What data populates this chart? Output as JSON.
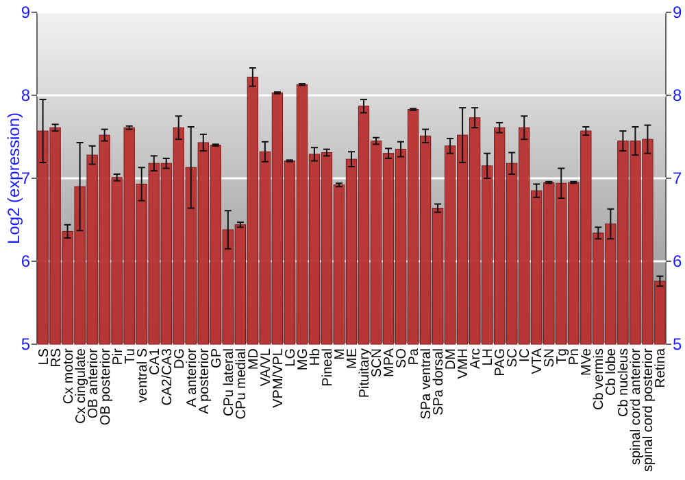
{
  "chart_data": {
    "type": "bar",
    "ylabel": "Log2 (expression)",
    "categories": [
      "LS",
      "RS",
      "Cx motor",
      "Cx cingulate",
      "OB anterior",
      "OB posterior",
      "Pir",
      "Tu",
      "ventral S",
      "CA1",
      "CA2/CA3",
      "DG",
      "A anterior",
      "A posterior",
      "GP",
      "CPu lateral",
      "CPu medial",
      "MD",
      "VA/VL",
      "VPM/VPL",
      "LG",
      "MG",
      "Hb",
      "Pineal",
      "M",
      "ME",
      "Pituitary",
      "SCN",
      "MPA",
      "SO",
      "Pa",
      "SPa ventral",
      "SPa dorsal",
      "DM",
      "VMH",
      "Arc",
      "LH",
      "PAG",
      "SC",
      "IC",
      "VTA",
      "SN",
      "Tg",
      "Pn",
      "MVe",
      "Cb vermis",
      "Cb lobe",
      "Cb nucleus",
      "spinal cord anterior",
      "spinal cord posterior",
      "Retina"
    ],
    "values": [
      7.57,
      7.61,
      6.36,
      6.9,
      7.28,
      7.52,
      7.01,
      7.61,
      6.93,
      7.18,
      7.18,
      7.61,
      7.13,
      7.43,
      7.4,
      6.38,
      6.44,
      8.22,
      7.32,
      8.03,
      7.21,
      8.13,
      7.29,
      7.31,
      6.92,
      7.23,
      7.87,
      7.45,
      7.3,
      7.35,
      7.83,
      7.51,
      6.64,
      7.39,
      7.52,
      7.73,
      7.15,
      7.61,
      7.18,
      7.61,
      6.85,
      6.95,
      6.94,
      6.95,
      7.57,
      6.34,
      6.45,
      7.45,
      7.45,
      7.47,
      5.76
    ],
    "errors": [
      0.38,
      0.04,
      0.08,
      0.53,
      0.11,
      0.07,
      0.04,
      0.02,
      0.2,
      0.09,
      0.06,
      0.14,
      0.49,
      0.1,
      0.01,
      0.23,
      0.03,
      0.11,
      0.12,
      0.01,
      0.01,
      0.01,
      0.08,
      0.04,
      0.02,
      0.09,
      0.08,
      0.04,
      0.06,
      0.09,
      0.01,
      0.08,
      0.05,
      0.09,
      0.33,
      0.12,
      0.15,
      0.06,
      0.13,
      0.14,
      0.08,
      0.01,
      0.18,
      0.01,
      0.05,
      0.07,
      0.18,
      0.12,
      0.17,
      0.17,
      0.06
    ],
    "color": "#b83232",
    "ylim": [
      5,
      9
    ],
    "yticks": [
      5,
      6,
      7,
      8,
      9
    ],
    "y2lim": [
      5,
      9
    ],
    "y2ticks": [
      5,
      6,
      7,
      8,
      9
    ],
    "grid": "y"
  }
}
